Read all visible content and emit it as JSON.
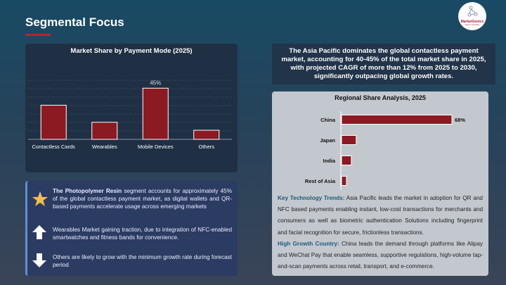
{
  "header": {
    "title": "Segmental Focus",
    "logo_text": "MarketGenics",
    "logo_tagline": "Ideas to Innovation"
  },
  "chart_data": [
    {
      "type": "bar",
      "title": "Market Share by Payment Mode (2025)",
      "categories": [
        "Contactless Cards",
        "Wearables",
        "Mobile Devices",
        "Others"
      ],
      "values": [
        30,
        15,
        45,
        8
      ],
      "data_labels": {
        "Mobile Devices": "45%"
      },
      "unit": "%",
      "ylim": [
        0,
        52
      ],
      "grid": true,
      "bar_color": "#8b1a22"
    },
    {
      "type": "bar",
      "orientation": "horizontal",
      "title": "Regional Share Analysis, 2025",
      "categories": [
        "China",
        "Japan",
        "India",
        "Rest of Asia"
      ],
      "values": [
        68,
        9,
        6,
        3
      ],
      "data_labels": {
        "China": "68%"
      },
      "unit": "%",
      "xlim": [
        0,
        100
      ],
      "grid": false,
      "bar_color": "#8b1a22"
    }
  ],
  "left_bullets": [
    {
      "icon": "star-icon",
      "bold": "The Photopolymer Resin",
      "text": " segment accounts for approximately 45% of the global contactless payment market, as digital wallets and QR-based payments accelerate usage across emerging markets"
    },
    {
      "icon": "arrow-up-icon",
      "bold": "",
      "text": "Wearables Market gaining traction, due to integration of NFC-enabled smartwatches and fitness bands for convenience."
    },
    {
      "icon": "arrow-down-icon",
      "bold": "",
      "text": "Others are likely to grow with the minimum growth rate during forecast period"
    }
  ],
  "summary": "The Asia Pacific dominates the global contactless payment market, accounting for 40-45% of the total market share in 2025, with projected CAGR of more than 12% from 2025 to 2030, significantly outpacing global growth rates.",
  "insights": [
    {
      "label": "Key Technology Trends:",
      "text": " Asia Pacific leads the market in adoption for QR and NFC based payments enabling instant, low-cost transactions for merchants and consumers as well as biometric authentication Solutions including fingerprint and facial recognition for secure, frictionless transactions."
    },
    {
      "label": "High Growth Country:",
      "text": " China leads the demand through platforms like Alipay and WeChat Pay that enable seamless, supportive regulations, high-volume tap-and-scan payments across retail, transport, and e-commerce."
    }
  ]
}
